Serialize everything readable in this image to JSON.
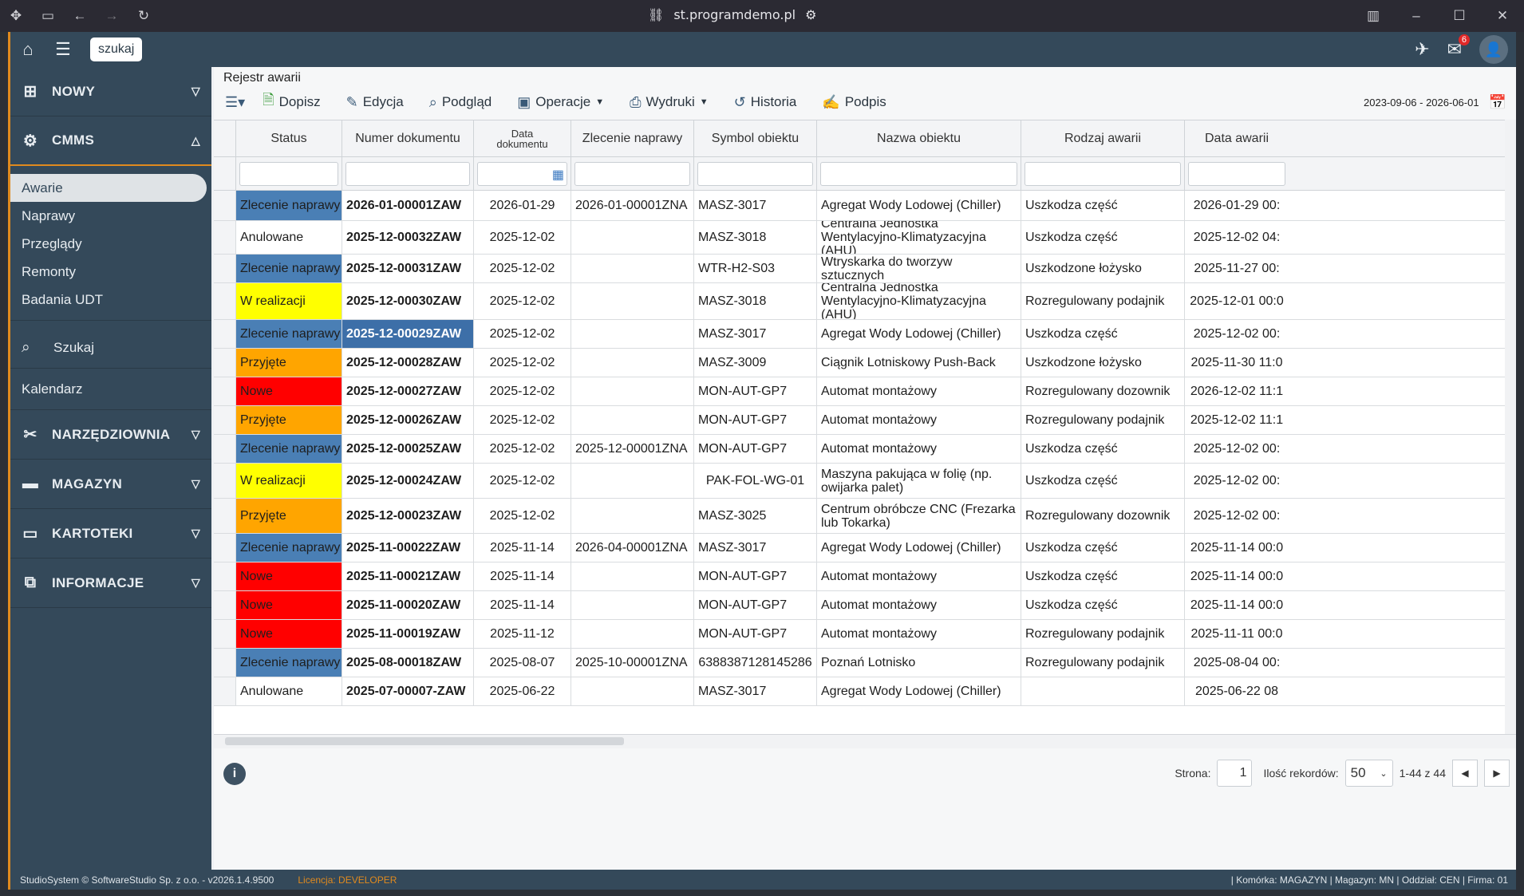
{
  "browser": {
    "url": "st.programdemo.pl"
  },
  "topbar": {
    "search_label": "szukaj",
    "mail_count": "6"
  },
  "sidebar": {
    "groups": [
      {
        "label": "NOWY"
      },
      {
        "label": "CMMS"
      }
    ],
    "cmms_items": [
      {
        "label": "Awarie"
      },
      {
        "label": "Naprawy"
      },
      {
        "label": "Przeglądy"
      },
      {
        "label": "Remonty"
      },
      {
        "label": "Badania UDT"
      }
    ],
    "szukaj": "Szukaj",
    "kalendarz": "Kalendarz",
    "lower_groups": [
      {
        "label": "NARZĘDZIOWNIA"
      },
      {
        "label": "MAGAZYN"
      },
      {
        "label": "KARTOTEKI"
      },
      {
        "label": "INFORMACJE"
      }
    ]
  },
  "main": {
    "breadcrumb": "Rejestr awarii",
    "toolbar": {
      "dopisz": "Dopisz",
      "edycja": "Edycja",
      "podglad": "Podgląd",
      "operacje": "Operacje",
      "wydruki": "Wydruki",
      "historia": "Historia",
      "podpis": "Podpis"
    },
    "date_range": "2023-09-06 - 2026-06-01",
    "columns": [
      "Status",
      "Numer dokumentu",
      "Data dokumentu",
      "Zlecenie naprawy",
      "Symbol obiektu",
      "Nazwa obiektu",
      "Rodzaj awarii",
      "Data awarii"
    ],
    "rows": [
      [
        "Zlecenie naprawy",
        "2026-01-00001ZAW",
        "2026-01-29",
        "2026-01-00001ZNA",
        "MASZ-3017",
        "Agregat Wody Lodowej (Chiller)",
        "Uszkodza część",
        "2026-01-29 00:"
      ],
      [
        "Anulowane",
        "2025-12-00032ZAW",
        "2025-12-02",
        "",
        "MASZ-3018",
        "Centralna Jednostka Wentylacyjno-Klimatyzacyjna (AHU)",
        "Uszkodza część",
        "2025-12-02 04:"
      ],
      [
        "Zlecenie naprawy",
        "2025-12-00031ZAW",
        "2025-12-02",
        "",
        "WTR-H2-S03",
        "Wtryskarka do tworzyw sztucznych",
        "Uszkodzone łożysko",
        "2025-11-27 00:"
      ],
      [
        "W realizacji",
        "2025-12-00030ZAW",
        "2025-12-02",
        "",
        "MASZ-3018",
        "Centralna Jednostka Wentylacyjno-Klimatyzacyjna (AHU)",
        "Rozregulowany podajnik",
        "2025-12-01 00:0"
      ],
      [
        "Zlecenie naprawy",
        "2025-12-00029ZAW",
        "2025-12-02",
        "",
        "MASZ-3017",
        "Agregat Wody Lodowej (Chiller)",
        "Uszkodza część",
        "2025-12-02 00:"
      ],
      [
        "Przyjęte",
        "2025-12-00028ZAW",
        "2025-12-02",
        "",
        "MASZ-3009",
        "Ciągnik Lotniskowy Push-Back",
        "Uszkodzone łożysko",
        "2025-11-30 11:0"
      ],
      [
        "Nowe",
        "2025-12-00027ZAW",
        "2025-12-02",
        "",
        "MON-AUT-GP7",
        "Automat montażowy",
        "Rozregulowany dozownik",
        "2026-12-02 11:1"
      ],
      [
        "Przyjęte",
        "2025-12-00026ZAW",
        "2025-12-02",
        "",
        "MON-AUT-GP7",
        "Automat montażowy",
        "Rozregulowany podajnik",
        "2025-12-02 11:1"
      ],
      [
        "Zlecenie naprawy",
        "2025-12-00025ZAW",
        "2025-12-02",
        "2025-12-00001ZNA",
        "MON-AUT-GP7",
        "Automat montażowy",
        "Uszkodza część",
        "2025-12-02 00:"
      ],
      [
        "W realizacji",
        "2025-12-00024ZAW",
        "2025-12-02",
        "",
        "PAK-FOL-WG-01",
        "Maszyna pakująca w folię (np. owijarka palet)",
        "Uszkodza część",
        "2025-12-02 00:"
      ],
      [
        "Przyjęte",
        "2025-12-00023ZAW",
        "2025-12-02",
        "",
        "MASZ-3025",
        "Centrum obróbcze CNC (Frezarka lub Tokarka)",
        "Rozregulowany dozownik",
        "2025-12-02 00:"
      ],
      [
        "Zlecenie naprawy",
        "2025-11-00022ZAW",
        "2025-11-14",
        "2026-04-00001ZNA",
        "MASZ-3017",
        "Agregat Wody Lodowej (Chiller)",
        "Uszkodza część",
        "2025-11-14 00:0"
      ],
      [
        "Nowe",
        "2025-11-00021ZAW",
        "2025-11-14",
        "",
        "MON-AUT-GP7",
        "Automat montażowy",
        "Uszkodza część",
        "2025-11-14 00:0"
      ],
      [
        "Nowe",
        "2025-11-00020ZAW",
        "2025-11-14",
        "",
        "MON-AUT-GP7",
        "Automat montażowy",
        "Uszkodza część",
        "2025-11-14 00:0"
      ],
      [
        "Nowe",
        "2025-11-00019ZAW",
        "2025-11-12",
        "",
        "MON-AUT-GP7",
        "Automat montażowy",
        "Rozregulowany podajnik",
        "2025-11-11 00:0"
      ],
      [
        "Zlecenie naprawy",
        "2025-08-00018ZAW",
        "2025-08-07",
        "2025-10-00001ZNA",
        "6388387128145286",
        "Poznań Lotnisko",
        "Rozregulowany podajnik",
        "2025-08-04 00:"
      ],
      [
        "Anulowane",
        "2025-07-00007-ZAW",
        "2025-06-22",
        "",
        "MASZ-3017",
        "Agregat Wody Lodowej (Chiller)",
        "",
        "2025-06-22 08"
      ]
    ],
    "status_colors": {
      "Zlecenie naprawy": "#4a7fb5",
      "Anulowane": "#ffffff",
      "W realizacji": "#ffff00",
      "Przyjęte": "#ffa500",
      "Nowe": "#ff0000"
    },
    "selected_number": "2025-12-00029ZAW",
    "pager": {
      "page_label": "Strona:",
      "page_value": "1",
      "records_label": "Ilość rekordów:",
      "records_value": "50",
      "range": "1-44 z 44"
    }
  },
  "statusbar": {
    "copyright": "StudioSystem © SoftwareStudio Sp. z o.o. - v2026.1.4.9500",
    "license": "Licencja: DEVELOPER",
    "right": "| Komórka: MAGAZYN | Magazyn: MN | Oddział: CEN | Firma: 01"
  }
}
